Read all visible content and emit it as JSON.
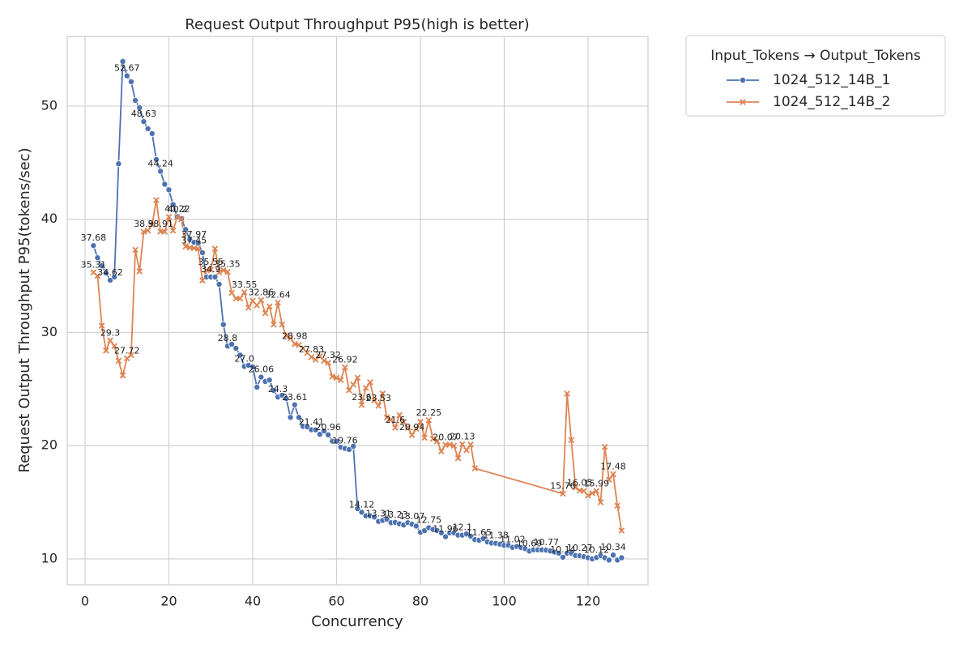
{
  "chart_data": {
    "type": "line",
    "title": "Request Output Throughput P95(high is better)",
    "x_label": "Concurrency",
    "y_label": "Request Output Throughput P95(tokens/sec)",
    "legend_title": "Input_Tokens → Output_Tokens",
    "legend_position": "outside-upper-right",
    "grid": true,
    "xlim": [
      -4.25,
      134.3
    ],
    "ylim": [
      7.71,
      56.15
    ],
    "xticks": [
      0,
      20,
      40,
      60,
      80,
      100,
      120
    ],
    "yticks": [
      10,
      20,
      30,
      40,
      50
    ],
    "series": [
      {
        "name": "1024_512_14B_1",
        "color": "#4c72b0",
        "marker": "circle",
        "x": [
          2,
          3,
          4,
          5,
          6,
          7,
          8,
          9,
          10,
          11,
          12,
          13,
          14,
          15,
          16,
          17,
          18,
          19,
          20,
          21,
          22,
          23,
          24,
          25,
          26,
          27,
          28,
          29,
          30,
          31,
          32,
          33,
          34,
          35,
          36,
          37,
          38,
          39,
          40,
          41,
          42,
          43,
          44,
          45,
          46,
          47,
          48,
          49,
          50,
          51,
          52,
          53,
          54,
          55,
          56,
          57,
          58,
          59,
          60,
          61,
          62,
          63,
          64,
          65,
          66,
          67,
          68,
          69,
          70,
          71,
          72,
          73,
          74,
          75,
          76,
          77,
          78,
          79,
          80,
          81,
          82,
          83,
          84,
          85,
          86,
          87,
          88,
          89,
          90,
          91,
          92,
          93,
          94,
          95,
          96,
          97,
          98,
          99,
          100,
          101,
          102,
          103,
          104,
          105,
          106,
          107,
          108,
          109,
          110,
          111,
          112,
          113,
          114,
          115,
          116,
          117,
          118,
          119,
          120,
          121,
          122,
          123,
          124,
          125,
          126,
          127,
          128
        ],
        "values": [
          37.68,
          36.6,
          35.9,
          35.26,
          34.62,
          34.9,
          44.9,
          53.94,
          52.67,
          52.15,
          50.5,
          49.86,
          48.63,
          48.0,
          47.57,
          45.28,
          44.24,
          43.1,
          42.6,
          41.3,
          40.22,
          40.05,
          39.1,
          38.2,
          37.97,
          37.9,
          37.05,
          34.9,
          34.9,
          34.9,
          34.26,
          30.7,
          28.8,
          28.96,
          28.6,
          28.0,
          27.0,
          27.1,
          26.96,
          25.17,
          26.06,
          25.67,
          25.8,
          24.88,
          24.3,
          24.45,
          24.17,
          22.5,
          23.61,
          22.5,
          21.7,
          21.66,
          21.41,
          21.4,
          21.0,
          21.3,
          20.96,
          20.4,
          20.4,
          19.87,
          19.76,
          19.66,
          19.95,
          14.44,
          14.12,
          13.8,
          13.8,
          13.7,
          13.31,
          13.4,
          13.5,
          13.2,
          13.23,
          13.1,
          13.0,
          13.2,
          13.07,
          12.9,
          12.35,
          12.5,
          12.75,
          12.6,
          12.5,
          12.3,
          11.96,
          12.3,
          12.3,
          12.1,
          12.1,
          12.2,
          12.0,
          11.7,
          11.65,
          11.8,
          11.5,
          11.4,
          11.38,
          11.3,
          11.2,
          11.2,
          11.02,
          11.1,
          11.0,
          10.9,
          10.69,
          10.8,
          10.8,
          10.8,
          10.77,
          10.7,
          10.6,
          10.5,
          10.14,
          10.5,
          10.5,
          10.3,
          10.27,
          10.2,
          10.1,
          10.0,
          10.12,
          10.3,
          10.1,
          9.9,
          10.34,
          9.9,
          10.1
        ],
        "value_labels": [
          "37.68",
          null,
          null,
          null,
          "34.62",
          null,
          null,
          null,
          "52.67",
          null,
          null,
          null,
          "48.63",
          null,
          null,
          null,
          "44.24",
          null,
          null,
          null,
          "40.22",
          null,
          null,
          null,
          "37.97",
          null,
          null,
          null,
          "34.9",
          null,
          null,
          null,
          "28.8",
          null,
          null,
          null,
          "27.0",
          null,
          null,
          null,
          "26.06",
          null,
          null,
          null,
          "24.3",
          null,
          null,
          null,
          "23.61",
          null,
          null,
          null,
          "21.41",
          null,
          null,
          null,
          "20.96",
          null,
          null,
          null,
          "19.76",
          null,
          null,
          null,
          "14.12",
          null,
          null,
          null,
          "13.31",
          null,
          null,
          null,
          "13.23",
          null,
          null,
          null,
          "13.07",
          null,
          null,
          null,
          "12.75",
          null,
          null,
          null,
          "11.96",
          null,
          null,
          null,
          "12.1",
          null,
          null,
          null,
          "11.65",
          null,
          null,
          null,
          "11.38",
          null,
          null,
          null,
          "11.02",
          null,
          null,
          null,
          "10.69",
          null,
          null,
          null,
          "10.77",
          null,
          null,
          null,
          "10.14",
          null,
          null,
          null,
          "10.27",
          null,
          null,
          null,
          "10.12",
          null,
          null,
          null,
          "10.34",
          null,
          null
        ]
      },
      {
        "name": "1024_512_14B_2",
        "color": "#dd8452",
        "marker": "x",
        "x": [
          2,
          3,
          4,
          5,
          6,
          7,
          8,
          9,
          10,
          11,
          12,
          13,
          14,
          15,
          16,
          17,
          18,
          19,
          20,
          21,
          22,
          23,
          24,
          25,
          26,
          27,
          28,
          29,
          30,
          31,
          32,
          33,
          34,
          35,
          36,
          37,
          38,
          39,
          40,
          41,
          42,
          43,
          44,
          45,
          46,
          47,
          48,
          49,
          50,
          51,
          52,
          53,
          54,
          55,
          56,
          57,
          58,
          59,
          60,
          61,
          62,
          63,
          64,
          65,
          66,
          67,
          68,
          69,
          70,
          71,
          72,
          73,
          74,
          75,
          76,
          77,
          78,
          79,
          80,
          81,
          82,
          83,
          84,
          85,
          86,
          87,
          88,
          89,
          90,
          91,
          92,
          93,
          114,
          115,
          116,
          117,
          118,
          119,
          120,
          121,
          122,
          123,
          124,
          125,
          126,
          127,
          128
        ],
        "values": [
          35.31,
          35.0,
          30.6,
          28.4,
          29.3,
          28.8,
          27.5,
          26.2,
          27.72,
          28.0,
          37.3,
          35.4,
          38.9,
          39.0,
          39.5,
          41.7,
          38.91,
          38.9,
          40.2,
          39.0,
          40.2,
          40.0,
          37.6,
          37.5,
          37.45,
          37.4,
          34.6,
          35.5,
          35.55,
          37.4,
          35.3,
          35.5,
          35.35,
          33.5,
          33.0,
          33.0,
          33.55,
          32.2,
          32.8,
          32.4,
          32.86,
          31.7,
          32.3,
          30.7,
          32.64,
          30.7,
          29.7,
          29.5,
          28.98,
          28.9,
          28.6,
          28.2,
          27.83,
          27.6,
          27.9,
          27.5,
          27.32,
          26.1,
          26.0,
          25.8,
          26.92,
          24.9,
          25.4,
          26.0,
          23.6,
          25.1,
          25.6,
          24.0,
          23.53,
          24.6,
          22.5,
          22.3,
          21.6,
          22.7,
          22.1,
          21.6,
          20.94,
          21.5,
          22.1,
          20.7,
          22.25,
          20.6,
          20.4,
          19.5,
          20.07,
          20.1,
          20.0,
          18.9,
          20.13,
          19.6,
          20.1,
          18.0,
          15.76,
          24.6,
          20.5,
          16.3,
          16.05,
          16.0,
          15.6,
          15.8,
          15.99,
          15.0,
          19.9,
          17.0,
          17.48,
          14.7,
          12.5
        ],
        "value_labels": [
          "35.31",
          null,
          null,
          null,
          "29.3",
          null,
          null,
          null,
          "27.72",
          null,
          null,
          null,
          "38.9",
          null,
          null,
          null,
          "38.91",
          null,
          null,
          null,
          "40.2",
          null,
          null,
          null,
          "37.45",
          null,
          null,
          null,
          "35.55",
          null,
          null,
          null,
          "35.35",
          null,
          null,
          null,
          "33.55",
          null,
          null,
          null,
          "32.86",
          null,
          null,
          null,
          "32.64",
          null,
          null,
          null,
          "28.98",
          null,
          null,
          null,
          "27.83",
          null,
          null,
          null,
          "27.32",
          null,
          null,
          null,
          "26.92",
          null,
          null,
          null,
          "23.6",
          null,
          null,
          null,
          "23.53",
          null,
          null,
          null,
          "21.6",
          null,
          null,
          null,
          "20.94",
          null,
          null,
          null,
          "22.25",
          null,
          null,
          null,
          "20.07",
          null,
          null,
          null,
          "20.13",
          null,
          null,
          null,
          "15.76",
          null,
          null,
          null,
          "16.05",
          null,
          null,
          null,
          "15.99",
          null,
          null,
          null,
          "17.48",
          null,
          null
        ]
      }
    ]
  }
}
